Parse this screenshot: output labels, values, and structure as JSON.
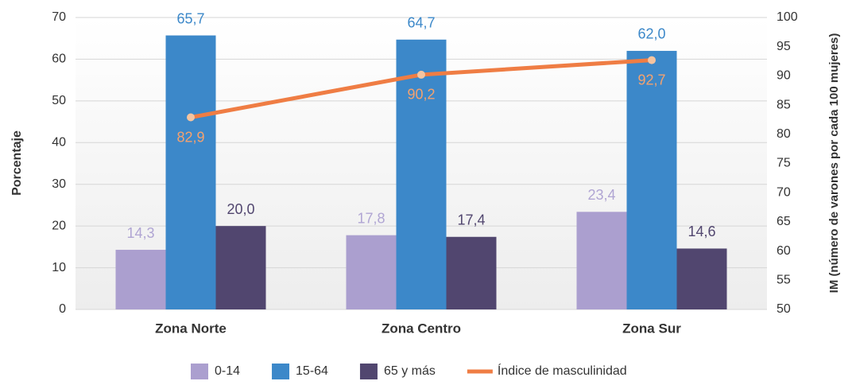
{
  "chart_data": {
    "type": "bar",
    "categories": [
      "Zona Norte",
      "Zona Centro",
      "Zona Sur"
    ],
    "y_label": "Porcentaje",
    "y2_label": "IM (número de varones por cada 100 mujeres)",
    "series": [
      {
        "name": "0-14",
        "color": "#ab9fcf",
        "label_color": "#b0a5d3",
        "values": [
          14.3,
          17.8,
          23.4
        ],
        "value_labels": [
          "14,3",
          "17,8",
          "23,4"
        ]
      },
      {
        "name": "15-64",
        "color": "#3c88c9",
        "label_color": "#3c88c9",
        "values": [
          65.7,
          64.7,
          62.0
        ],
        "value_labels": [
          "65,7",
          "64,7",
          "62,0"
        ]
      },
      {
        "name": "65 y más",
        "color": "#51466f",
        "label_color": "#51466f",
        "values": [
          20.0,
          17.4,
          14.6
        ],
        "value_labels": [
          "20,0",
          "17,4",
          "14,6"
        ]
      },
      {
        "name": "Índice de masculinidad",
        "type": "line",
        "axis": "y2",
        "color": "#ef7d44",
        "marker_color": "#f5c4a0",
        "label_color": "#f4a26f",
        "values": [
          82.9,
          90.2,
          92.7
        ],
        "value_labels": [
          "82,9",
          "90,2",
          "92,7"
        ]
      }
    ],
    "ylim": [
      0,
      70
    ],
    "yticks": [
      0,
      10,
      20,
      30,
      40,
      50,
      60,
      70
    ],
    "y2lim": [
      50,
      100
    ],
    "y2ticks": [
      50,
      55,
      60,
      65,
      70,
      75,
      80,
      85,
      90,
      95,
      100
    ],
    "grid": true,
    "legend": "bottom"
  }
}
